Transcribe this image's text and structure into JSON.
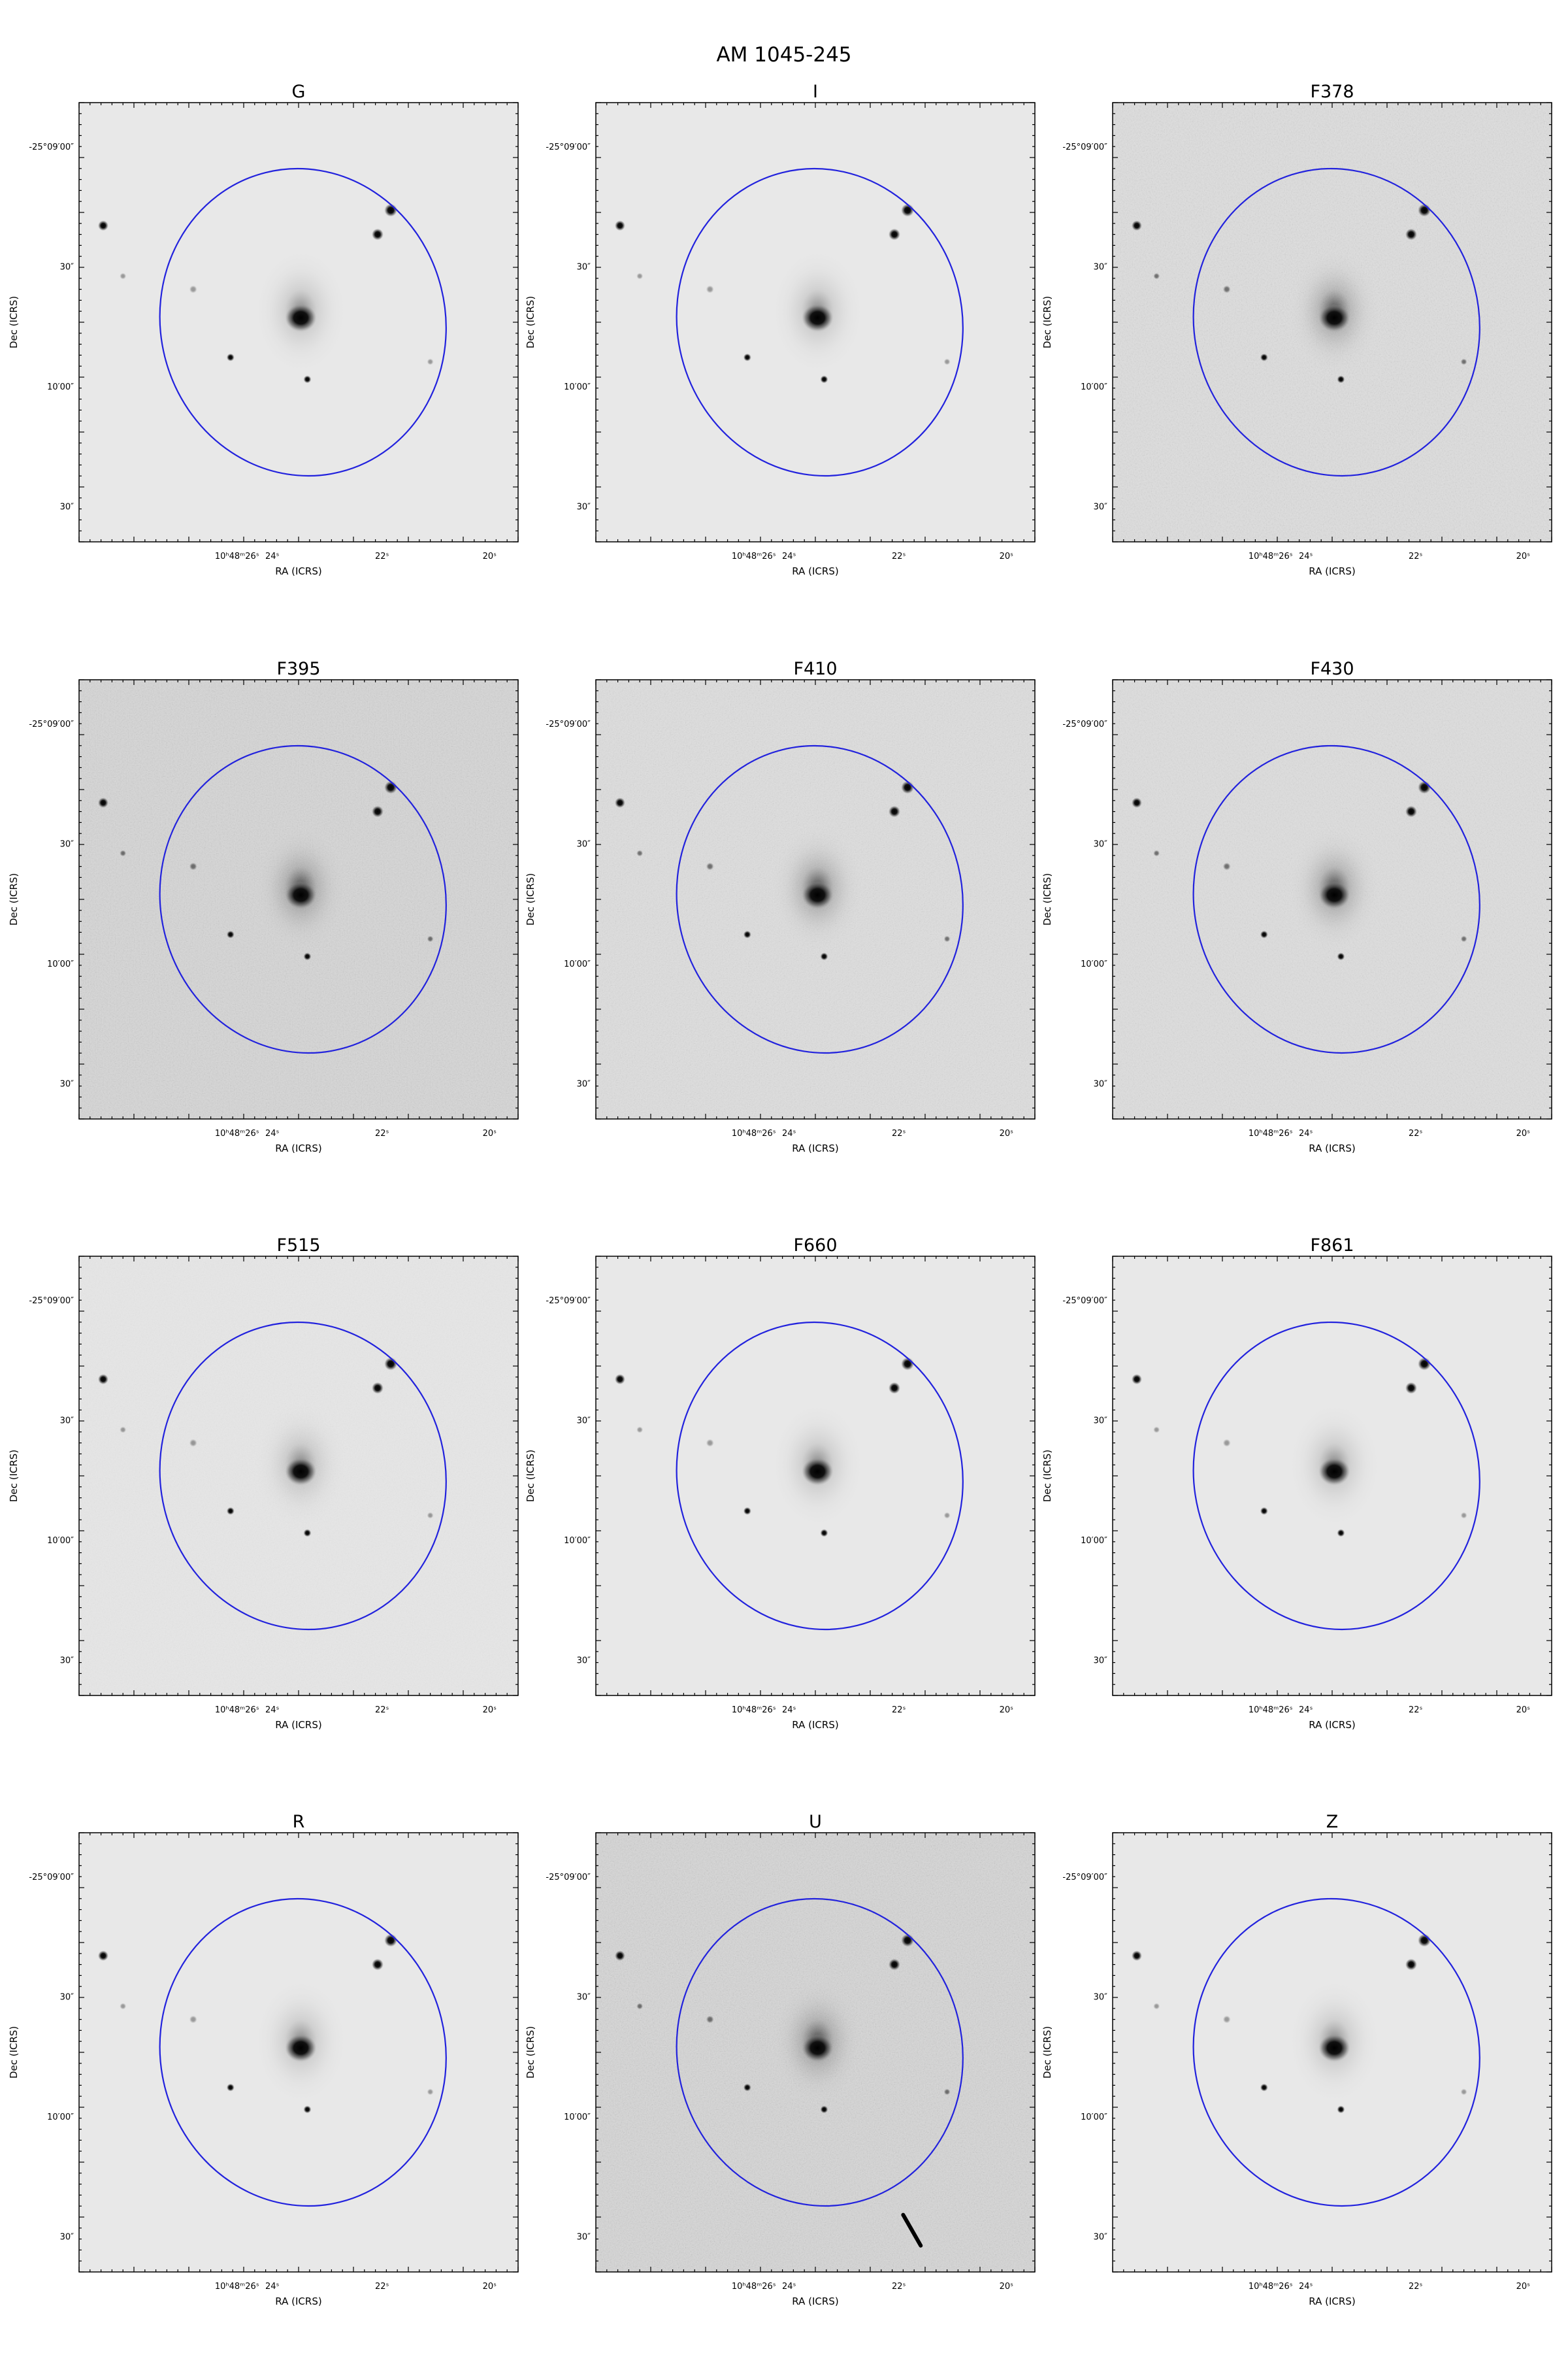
{
  "figure": {
    "title": "AM 1045-245",
    "panels": [
      {
        "name": "G",
        "noise": 0.04,
        "bg": 232,
        "dust": true
      },
      {
        "name": "I",
        "noise": 0.04,
        "bg": 232,
        "dust": true
      },
      {
        "name": "F378",
        "noise": 0.5,
        "bg": 222,
        "dust": false
      },
      {
        "name": "F395",
        "noise": 0.55,
        "bg": 214,
        "dust": false
      },
      {
        "name": "F410",
        "noise": 0.45,
        "bg": 222,
        "dust": false
      },
      {
        "name": "F430",
        "noise": 0.45,
        "bg": 222,
        "dust": false
      },
      {
        "name": "F515",
        "noise": 0.2,
        "bg": 230,
        "dust": true
      },
      {
        "name": "F660",
        "noise": 0.05,
        "bg": 232,
        "dust": true
      },
      {
        "name": "F861",
        "noise": 0.06,
        "bg": 232,
        "dust": true
      },
      {
        "name": "R",
        "noise": 0.04,
        "bg": 232,
        "dust": true
      },
      {
        "name": "U",
        "noise": 0.6,
        "bg": 214,
        "dust": false,
        "streak": true
      },
      {
        "name": "Z",
        "noise": 0.05,
        "bg": 232,
        "dust": true
      }
    ],
    "axes": {
      "xlabel": "RA (ICRS)",
      "ylabel": "Dec (ICRS)",
      "xticks": [
        "10ʰ48ᵐ26ˢ",
        "24ˢ",
        "22ˢ",
        "20ˢ"
      ],
      "yticks": [
        "-25°09′00″",
        "30″",
        "10′00″",
        "30″"
      ]
    },
    "aperture_color": "#2222dd"
  }
}
